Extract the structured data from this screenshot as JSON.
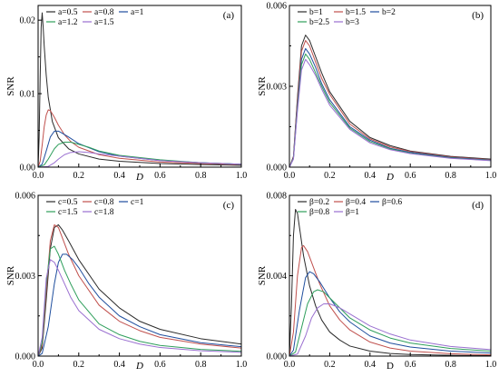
{
  "chart_data": [
    {
      "type": "line",
      "panel_label": "(a)",
      "xlabel": "D",
      "ylabel": "SNR",
      "xlim": [
        0,
        1.0
      ],
      "ylim": [
        0,
        0.022
      ],
      "xticks": [
        "0.0",
        "0.2",
        "0.4",
        "0.6",
        "0.8",
        "1.0"
      ],
      "xtick_values": [
        0,
        0.2,
        0.4,
        0.6,
        0.8,
        1.0
      ],
      "yticks": [
        "0.00",
        "0.01",
        "0.02"
      ],
      "ytick_values": [
        0,
        0.01,
        0.02
      ],
      "legend_position": "top-left",
      "legend_columns": 3,
      "series": [
        {
          "name": "a=0.5",
          "color": "#2b2b2b",
          "x": [
            0,
            0.005,
            0.01,
            0.015,
            0.02,
            0.025,
            0.03,
            0.04,
            0.05,
            0.07,
            0.1,
            0.15,
            0.2,
            0.3,
            0.4,
            0.6,
            0.8,
            1.0
          ],
          "y": [
            0,
            0.004,
            0.012,
            0.019,
            0.021,
            0.019,
            0.0165,
            0.0125,
            0.0095,
            0.0062,
            0.004,
            0.0025,
            0.0018,
            0.0011,
            0.0008,
            0.0005,
            0.00035,
            0.00025
          ]
        },
        {
          "name": "a=0.8",
          "color": "#c0504d",
          "x": [
            0,
            0.01,
            0.02,
            0.03,
            0.04,
            0.05,
            0.06,
            0.08,
            0.1,
            0.13,
            0.16,
            0.2,
            0.3,
            0.4,
            0.6,
            0.8,
            1.0
          ],
          "y": [
            0,
            0.0008,
            0.003,
            0.0055,
            0.0071,
            0.0078,
            0.0077,
            0.0068,
            0.0057,
            0.0044,
            0.0035,
            0.0027,
            0.0017,
            0.0012,
            0.0007,
            0.0005,
            0.00035
          ]
        },
        {
          "name": "a=1",
          "color": "#1f4e9e",
          "x": [
            0,
            0.02,
            0.04,
            0.06,
            0.08,
            0.1,
            0.12,
            0.15,
            0.2,
            0.3,
            0.4,
            0.6,
            0.8,
            1.0
          ],
          "y": [
            0,
            0.0004,
            0.0022,
            0.0041,
            0.0049,
            0.0049,
            0.0046,
            0.0041,
            0.0032,
            0.0021,
            0.0015,
            0.0009,
            0.0006,
            0.0004
          ]
        },
        {
          "name": "a=1.2",
          "color": "#2e9e5b",
          "x": [
            0,
            0.03,
            0.05,
            0.08,
            0.1,
            0.13,
            0.16,
            0.2,
            0.25,
            0.3,
            0.4,
            0.6,
            0.8,
            1.0
          ],
          "y": [
            0,
            0.0003,
            0.0011,
            0.0025,
            0.0031,
            0.0034,
            0.0034,
            0.0031,
            0.0027,
            0.0022,
            0.0016,
            0.001,
            0.0006,
            0.0004
          ]
        },
        {
          "name": "a=1.5",
          "color": "#9a6fd0",
          "x": [
            0,
            0.05,
            0.08,
            0.1,
            0.13,
            0.16,
            0.2,
            0.25,
            0.3,
            0.4,
            0.5,
            0.6,
            0.8,
            1.0
          ],
          "y": [
            0,
            0.0001,
            0.0006,
            0.0011,
            0.0017,
            0.002,
            0.0021,
            0.002,
            0.0018,
            0.0015,
            0.0012,
            0.0009,
            0.0006,
            0.0004
          ]
        }
      ]
    },
    {
      "type": "line",
      "panel_label": "(b)",
      "xlabel": "D",
      "ylabel": "SNR",
      "xlim": [
        0,
        1.0
      ],
      "ylim": [
        0,
        0.006
      ],
      "xticks": [
        "0.0",
        "0.2",
        "0.4",
        "0.6",
        "0.8",
        "1.0"
      ],
      "xtick_values": [
        0,
        0.2,
        0.4,
        0.6,
        0.8,
        1.0
      ],
      "yticks": [
        "0.000",
        "0.003",
        "0.006"
      ],
      "ytick_values": [
        0,
        0.003,
        0.006
      ],
      "legend_position": "top-left",
      "legend_columns": 3,
      "series": [
        {
          "name": "b=1",
          "color": "#2b2b2b",
          "x": [
            0,
            0.02,
            0.04,
            0.06,
            0.08,
            0.1,
            0.13,
            0.16,
            0.2,
            0.3,
            0.4,
            0.5,
            0.6,
            0.8,
            1.0
          ],
          "y": [
            0,
            0.0004,
            0.0026,
            0.0045,
            0.0049,
            0.0047,
            0.0041,
            0.0035,
            0.0028,
            0.0017,
            0.0011,
            0.0008,
            0.0006,
            0.0004,
            0.0003
          ]
        },
        {
          "name": "b=1.5",
          "color": "#c0504d",
          "x": [
            0,
            0.02,
            0.04,
            0.06,
            0.08,
            0.1,
            0.13,
            0.16,
            0.2,
            0.3,
            0.4,
            0.5,
            0.6,
            0.8,
            1.0
          ],
          "y": [
            0,
            0.00037,
            0.0025,
            0.0043,
            0.0047,
            0.0045,
            0.0039,
            0.0033,
            0.0027,
            0.0016,
            0.00105,
            0.00075,
            0.00058,
            0.00038,
            0.00028
          ]
        },
        {
          "name": "b=2",
          "color": "#1f4e9e",
          "x": [
            0,
            0.02,
            0.04,
            0.06,
            0.08,
            0.1,
            0.13,
            0.16,
            0.2,
            0.3,
            0.4,
            0.5,
            0.6,
            0.8,
            1.0
          ],
          "y": [
            0,
            0.00034,
            0.0023,
            0.004,
            0.0044,
            0.0042,
            0.0037,
            0.0031,
            0.0025,
            0.0015,
            0.001,
            0.0007,
            0.00055,
            0.00036,
            0.00026
          ]
        },
        {
          "name": "b=2.5",
          "color": "#2e9e5b",
          "x": [
            0,
            0.02,
            0.04,
            0.06,
            0.08,
            0.1,
            0.13,
            0.16,
            0.2,
            0.3,
            0.4,
            0.5,
            0.6,
            0.8,
            1.0
          ],
          "y": [
            0,
            0.00032,
            0.0022,
            0.0038,
            0.0042,
            0.004,
            0.0035,
            0.003,
            0.0024,
            0.00145,
            0.00095,
            0.00068,
            0.00052,
            0.00034,
            0.00025
          ]
        },
        {
          "name": "b=3",
          "color": "#9a6fd0",
          "x": [
            0,
            0.02,
            0.04,
            0.06,
            0.08,
            0.1,
            0.13,
            0.16,
            0.2,
            0.3,
            0.4,
            0.5,
            0.6,
            0.8,
            1.0
          ],
          "y": [
            0,
            0.0003,
            0.0021,
            0.0036,
            0.004,
            0.0038,
            0.0034,
            0.0029,
            0.0023,
            0.0014,
            0.0009,
            0.00065,
            0.0005,
            0.00033,
            0.00024
          ]
        }
      ]
    },
    {
      "type": "line",
      "panel_label": "(c)",
      "xlabel": "D",
      "ylabel": "SNR",
      "xlim": [
        0,
        1.0
      ],
      "ylim": [
        0,
        0.006
      ],
      "xticks": [
        "0.0",
        "0.2",
        "0.4",
        "0.6",
        "0.8",
        "1.0"
      ],
      "xtick_values": [
        0,
        0.2,
        0.4,
        0.6,
        0.8,
        1.0
      ],
      "yticks": [
        "0.000",
        "0.003",
        "0.006"
      ],
      "ytick_values": [
        0,
        0.003,
        0.006
      ],
      "legend_position": "top-left",
      "legend_columns": 3,
      "series": [
        {
          "name": "c=0.5",
          "color": "#2b2b2b",
          "x": [
            0,
            0.02,
            0.04,
            0.06,
            0.08,
            0.1,
            0.12,
            0.15,
            0.2,
            0.3,
            0.4,
            0.5,
            0.6,
            0.8,
            1.0
          ],
          "y": [
            0,
            0.0003,
            0.0021,
            0.004,
            0.0048,
            0.0049,
            0.0047,
            0.0043,
            0.0036,
            0.0025,
            0.0018,
            0.0013,
            0.001,
            0.00065,
            0.00045
          ]
        },
        {
          "name": "c=0.8",
          "color": "#c0504d",
          "x": [
            0,
            0.02,
            0.04,
            0.06,
            0.08,
            0.1,
            0.12,
            0.15,
            0.2,
            0.3,
            0.4,
            0.5,
            0.6,
            0.8,
            1.0
          ],
          "y": [
            0,
            0.0004,
            0.0024,
            0.0043,
            0.0049,
            0.0048,
            0.0044,
            0.0038,
            0.003,
            0.0019,
            0.0013,
            0.00095,
            0.0007,
            0.00045,
            0.0003
          ]
        },
        {
          "name": "c=1",
          "color": "#1f4e9e",
          "x": [
            0,
            0.02,
            0.05,
            0.08,
            0.1,
            0.12,
            0.14,
            0.17,
            0.2,
            0.25,
            0.3,
            0.4,
            0.5,
            0.6,
            0.8,
            1.0
          ],
          "y": [
            0,
            0.0001,
            0.0011,
            0.0027,
            0.0035,
            0.0038,
            0.0038,
            0.0036,
            0.0033,
            0.0027,
            0.0022,
            0.0015,
            0.0011,
            0.0008,
            0.0005,
            0.00035
          ]
        },
        {
          "name": "c=1.5",
          "color": "#2e9e5b",
          "x": [
            0,
            0.02,
            0.04,
            0.06,
            0.08,
            0.1,
            0.13,
            0.16,
            0.2,
            0.3,
            0.4,
            0.5,
            0.6,
            0.8,
            1.0
          ],
          "y": [
            0,
            0.0005,
            0.0027,
            0.004,
            0.0041,
            0.0038,
            0.0032,
            0.0027,
            0.0021,
            0.0012,
            0.0008,
            0.00055,
            0.0004,
            0.00025,
            0.00018
          ]
        },
        {
          "name": "c=1.8",
          "color": "#9a6fd0",
          "x": [
            0,
            0.02,
            0.04,
            0.06,
            0.08,
            0.1,
            0.13,
            0.16,
            0.2,
            0.3,
            0.4,
            0.5,
            0.6,
            0.8,
            1.0
          ],
          "y": [
            0,
            0.0007,
            0.0029,
            0.0036,
            0.0035,
            0.0032,
            0.0027,
            0.0022,
            0.0017,
            0.001,
            0.00065,
            0.00045,
            0.00032,
            0.0002,
            0.00014
          ]
        }
      ]
    },
    {
      "type": "line",
      "panel_label": "(d)",
      "xlabel": "D",
      "ylabel": "SNR",
      "xlim": [
        0,
        1.0
      ],
      "ylim": [
        0,
        0.008
      ],
      "xticks": [
        "0.0",
        "0.2",
        "0.4",
        "0.6",
        "0.8",
        "1.0"
      ],
      "xtick_values": [
        0,
        0.2,
        0.4,
        0.6,
        0.8,
        1.0
      ],
      "yticks": [
        "0.000",
        "0.004",
        "0.008"
      ],
      "ytick_values": [
        0,
        0.004,
        0.008
      ],
      "legend_position": "top-left",
      "legend_columns": 3,
      "series": [
        {
          "name": "β=0.2",
          "color": "#2b2b2b",
          "x": [
            0,
            0.01,
            0.02,
            0.03,
            0.04,
            0.05,
            0.07,
            0.1,
            0.13,
            0.16,
            0.2,
            0.25,
            0.3,
            0.4,
            0.5,
            0.6,
            0.8,
            1.0
          ],
          "y": [
            0,
            0.0025,
            0.006,
            0.0073,
            0.0071,
            0.0064,
            0.005,
            0.0035,
            0.0025,
            0.0018,
            0.0012,
            0.0008,
            0.0005,
            0.00025,
            0.00013,
            8e-05,
            4e-05,
            2e-05
          ]
        },
        {
          "name": "β=0.4",
          "color": "#c0504d",
          "x": [
            0,
            0.02,
            0.04,
            0.06,
            0.07,
            0.09,
            0.12,
            0.15,
            0.2,
            0.25,
            0.3,
            0.4,
            0.5,
            0.6,
            0.8,
            1.0
          ],
          "y": [
            0,
            0.0012,
            0.004,
            0.0054,
            0.0055,
            0.0052,
            0.0044,
            0.0036,
            0.0025,
            0.0018,
            0.0013,
            0.0007,
            0.0004,
            0.00025,
            0.00012,
            6e-05
          ]
        },
        {
          "name": "β=0.6",
          "color": "#1f4e9e",
          "x": [
            0,
            0.02,
            0.05,
            0.08,
            0.1,
            0.12,
            0.15,
            0.2,
            0.25,
            0.3,
            0.4,
            0.5,
            0.6,
            0.8,
            1.0
          ],
          "y": [
            0,
            0.0003,
            0.0023,
            0.0039,
            0.0042,
            0.0041,
            0.0037,
            0.0029,
            0.0022,
            0.0017,
            0.001,
            0.00065,
            0.00045,
            0.00025,
            0.00015
          ]
        },
        {
          "name": "β=0.8",
          "color": "#2e9e5b",
          "x": [
            0,
            0.03,
            0.06,
            0.09,
            0.12,
            0.14,
            0.17,
            0.2,
            0.25,
            0.3,
            0.4,
            0.5,
            0.6,
            0.8,
            1.0
          ],
          "y": [
            0,
            0.0002,
            0.0014,
            0.0026,
            0.0032,
            0.0033,
            0.0032,
            0.0029,
            0.0024,
            0.0019,
            0.0013,
            0.0009,
            0.00065,
            0.00038,
            0.00025
          ]
        },
        {
          "name": "β=1",
          "color": "#9a6fd0",
          "x": [
            0,
            0.04,
            0.08,
            0.11,
            0.14,
            0.17,
            0.2,
            0.25,
            0.3,
            0.4,
            0.5,
            0.6,
            0.8,
            1.0
          ],
          "y": [
            0,
            0.0001,
            0.001,
            0.0019,
            0.0024,
            0.0026,
            0.0026,
            0.0024,
            0.0021,
            0.0015,
            0.0011,
            0.0008,
            0.00048,
            0.00032
          ]
        }
      ]
    }
  ]
}
